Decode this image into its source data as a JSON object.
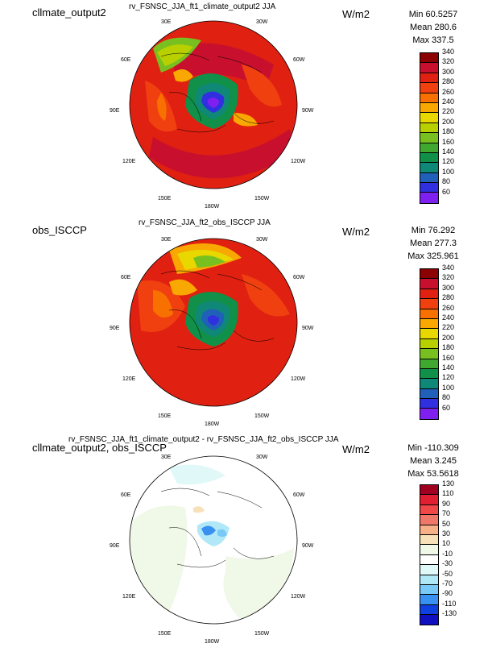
{
  "panels": [
    {
      "left_title": "cllmate_output2",
      "center_title": "rv_FSNSC_JJA_ft1_climate_output2  JJA",
      "units": "W/m2",
      "stats": {
        "min": "Min 60.5257",
        "mean": "Mean 280.6",
        "max": "Max 337.5"
      },
      "colorbar": {
        "labels": [
          "340",
          "320",
          "300",
          "280",
          "260",
          "240",
          "220",
          "200",
          "180",
          "160",
          "140",
          "120",
          "100",
          "80",
          "60"
        ],
        "colors": [
          "#8b0000",
          "#c8102e",
          "#e02010",
          "#f04010",
          "#f87000",
          "#f8a800",
          "#e8d800",
          "#b8d000",
          "#78c020",
          "#40a830",
          "#109048",
          "#108878",
          "#2060b8",
          "#3030e0",
          "#8020f0"
        ]
      },
      "map_labels": [
        "30E",
        "30W",
        "60E",
        "60W",
        "90E",
        "90W",
        "120E",
        "120W",
        "150E",
        "150W",
        "180W"
      ]
    },
    {
      "left_title": "obs_ISCCP",
      "center_title": "rv_FSNSC_JJA_ft2_obs_ISCCP  JJA",
      "units": "W/m2",
      "stats": {
        "min": "Min 76.292",
        "mean": "Mean 277.3",
        "max": "Max 325.961"
      },
      "colorbar": {
        "labels": [
          "340",
          "320",
          "300",
          "280",
          "260",
          "240",
          "220",
          "200",
          "180",
          "160",
          "140",
          "120",
          "100",
          "80",
          "60"
        ],
        "colors": [
          "#8b0000",
          "#c8102e",
          "#e02010",
          "#f04010",
          "#f87000",
          "#f8a800",
          "#e8d800",
          "#b8d000",
          "#78c020",
          "#40a830",
          "#109048",
          "#108878",
          "#2060b8",
          "#3030e0",
          "#8020f0"
        ]
      },
      "map_labels": [
        "30E",
        "30W",
        "60E",
        "60W",
        "90E",
        "90W",
        "120E",
        "120W",
        "150E",
        "150W",
        "180W"
      ]
    },
    {
      "left_title": "cllmate_output2, obs_ISCCP",
      "center_title": "rv_FSNSC_JJA_ft1_climate_output2 - rv_FSNSC_JJA_ft2_obs_ISCCP  JJA",
      "units": "W/m2",
      "stats": {
        "min": "Min -110.309",
        "mean": "Mean 3.245",
        "max": "Max 53.5618"
      },
      "colorbar": {
        "labels": [
          "130",
          "110",
          "90",
          "70",
          "50",
          "30",
          "10",
          "-10",
          "-30",
          "-50",
          "-70",
          "-90",
          "-110",
          "-130"
        ],
        "colors": [
          "#a00020",
          "#e02030",
          "#f04848",
          "#f07868",
          "#f8b088",
          "#f8e0b8",
          "#f0f8e8",
          "#ffffff",
          "#e0f8f8",
          "#b0e8f8",
          "#78c8f8",
          "#3890f0",
          "#1040e0",
          "#1010c0"
        ]
      },
      "map_labels": [
        "30E",
        "30W",
        "60E",
        "60W",
        "90E",
        "90W",
        "120E",
        "120W",
        "150E",
        "150W",
        "180W"
      ]
    }
  ]
}
